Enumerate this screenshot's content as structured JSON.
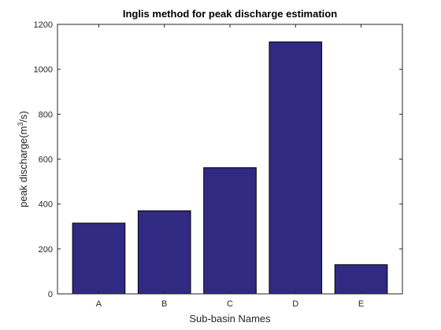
{
  "chart_data": {
    "type": "bar",
    "title": "Inglis method for peak discharge estimation",
    "xlabel": "Sub-basin Names",
    "ylabel_prefix": "peak discharge(m",
    "ylabel_superscript": "3",
    "ylabel_suffix": "/s)",
    "categories": [
      "A",
      "B",
      "C",
      "D",
      "E"
    ],
    "values": [
      315,
      370,
      562,
      1122,
      130
    ],
    "ylim": [
      0,
      1200
    ],
    "yticks": [
      0,
      200,
      400,
      600,
      800,
      1000,
      1200
    ],
    "grid": false,
    "bar_color": "#312A83",
    "edge_color": "#000000"
  }
}
